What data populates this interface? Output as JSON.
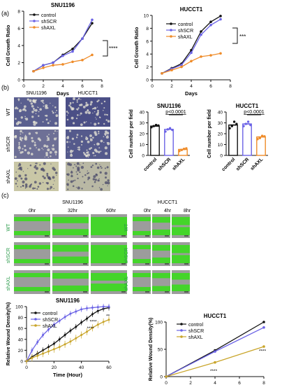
{
  "panels": {
    "a": "(a)",
    "b": "(b)",
    "c": "(c)"
  },
  "colors": {
    "control": "#111111",
    "shSCR": "#6b63e6",
    "shAXL": "#ef8c2a",
    "shAXL_c": "#c9a52a",
    "wound": "#3bdc1e",
    "cell": "#9a9a9a"
  },
  "a": {
    "legend": [
      "control",
      "shSCR",
      "shAXL"
    ],
    "sig": "****",
    "sig2": "***"
  },
  "b": {
    "micro_cols": [
      "SNU1196",
      "HUCCT1"
    ],
    "micro_rows": [
      "WT",
      "shSCR",
      "shAXL"
    ],
    "pval": "p<0.0001"
  },
  "c": {
    "img_left": {
      "title": "SNU1196",
      "times": [
        "0hr",
        "32hr",
        "60hr"
      ]
    },
    "img_right": {
      "title": "HUCCT1",
      "times": [
        "0hr",
        "4hr",
        "8hr"
      ]
    },
    "rows": [
      "WT",
      "shSCR",
      "shAXL"
    ],
    "legend": [
      "control",
      "shSCR",
      "shAXL"
    ]
  },
  "chart_data": [
    {
      "type": "line",
      "title": "SNU1196",
      "xlabel": "Days",
      "ylabel": "Cell Growth Ratio",
      "x": [
        1,
        2,
        3,
        4,
        5,
        6,
        7
      ],
      "xlim": [
        0,
        8
      ],
      "ylim": [
        0,
        8
      ],
      "xticks": [
        "0",
        "2",
        "4",
        "6",
        "8"
      ],
      "yticks": [
        "0",
        "2",
        "4",
        "6",
        "8"
      ],
      "series": [
        {
          "name": "control",
          "values": [
            1,
            1.7,
            2,
            2.9,
            3.6,
            4.8,
            6.6
          ]
        },
        {
          "name": "shSCR",
          "values": [
            1,
            1.7,
            2,
            2.8,
            3.3,
            4.8,
            7.0
          ]
        },
        {
          "name": "shAXL",
          "values": [
            1,
            1.4,
            1.7,
            1.8,
            2.1,
            2.3,
            2.9
          ]
        }
      ],
      "annotation": "****"
    },
    {
      "type": "line",
      "title": "HUCCT1",
      "xlabel": "Days",
      "ylabel": "Cell Growth Ratio",
      "x": [
        1,
        2,
        3,
        4,
        5,
        6,
        7
      ],
      "xlim": [
        0,
        8
      ],
      "ylim": [
        0,
        10
      ],
      "xticks": [
        "0",
        "2",
        "4",
        "6",
        "8"
      ],
      "yticks": [
        "0",
        "2",
        "4",
        "6",
        "8",
        "10"
      ],
      "series": [
        {
          "name": "control",
          "values": [
            1,
            1.8,
            2.5,
            4.6,
            7.5,
            9.0,
            9.9
          ]
        },
        {
          "name": "shSCR",
          "values": [
            1,
            1.7,
            2.3,
            4.2,
            7.0,
            8.5,
            9.4
          ]
        },
        {
          "name": "shAXL",
          "values": [
            1,
            1.5,
            2.0,
            2.9,
            3.6,
            3.8,
            4.1
          ]
        }
      ],
      "annotation": "***"
    },
    {
      "type": "bar",
      "title": "SNU1196",
      "ylabel": "Cell number per field",
      "categories": [
        "control",
        "shSCR",
        "shAXL"
      ],
      "values": [
        27,
        24,
        5.5
      ],
      "points": [
        [
          26,
          27,
          28,
          27.5
        ],
        [
          22,
          24,
          25,
          23.5
        ],
        [
          4,
          5,
          6,
          6.5
        ]
      ],
      "ylim": [
        0,
        40
      ],
      "yticks": [
        "0",
        "10",
        "20",
        "30",
        "40"
      ],
      "annotation": "p<0.0001"
    },
    {
      "type": "bar",
      "title": "HUCCT1",
      "ylabel": "Cell number per field",
      "categories": [
        "control",
        "shSCR",
        "shAXL"
      ],
      "values": [
        28,
        29,
        17
      ],
      "points": [
        [
          25,
          27,
          31,
          29
        ],
        [
          27,
          29,
          31,
          28
        ],
        [
          15,
          16,
          18,
          17.5
        ]
      ],
      "ylim": [
        0,
        40
      ],
      "yticks": [
        "0",
        "10",
        "20",
        "30",
        "40"
      ],
      "annotation": "p<0.0001"
    },
    {
      "type": "line",
      "title": "SNU1196",
      "xlabel": "Time (Hour)",
      "ylabel": "Relative Wound Density(%)",
      "x": [
        0,
        4,
        8,
        12,
        16,
        20,
        24,
        28,
        32,
        36,
        40,
        44,
        48,
        52,
        56,
        60
      ],
      "xlim": [
        0,
        60
      ],
      "ylim": [
        0,
        100
      ],
      "xticks": [
        "0",
        "20",
        "40",
        "60"
      ],
      "yticks": [
        "0",
        "20",
        "40",
        "60",
        "80",
        "100"
      ],
      "series": [
        {
          "name": "control",
          "values": [
            0,
            8,
            14,
            20,
            26,
            32,
            40,
            48,
            56,
            63,
            71,
            78,
            86,
            92,
            96,
            98
          ]
        },
        {
          "name": "shSCR",
          "values": [
            0,
            20,
            35,
            48,
            58,
            67,
            74,
            81,
            87,
            91,
            95,
            97,
            98,
            99,
            100,
            100
          ]
        },
        {
          "name": "shAXL",
          "values": [
            0,
            6,
            10,
            14,
            18,
            22,
            26,
            31,
            36,
            42,
            48,
            54,
            61,
            67,
            72,
            76
          ]
        }
      ],
      "annotations": [
        "****",
        "****",
        "**"
      ]
    },
    {
      "type": "line",
      "title": "HUCCT1",
      "xlabel": "Time (Hour)",
      "ylabel": "Relative Wound Density(%)",
      "x": [
        0,
        4,
        8
      ],
      "xlim": [
        0,
        8
      ],
      "ylim": [
        0,
        100
      ],
      "xticks": [
        "0",
        "2",
        "4",
        "6",
        "8"
      ],
      "yticks": [
        "0",
        "50",
        "100"
      ],
      "series": [
        {
          "name": "control",
          "values": [
            0,
            48,
            100
          ]
        },
        {
          "name": "shSCR",
          "values": [
            0,
            46,
            90
          ]
        },
        {
          "name": "shAXL",
          "values": [
            0,
            26,
            55
          ]
        }
      ],
      "annotations": [
        "****",
        "****"
      ]
    }
  ]
}
